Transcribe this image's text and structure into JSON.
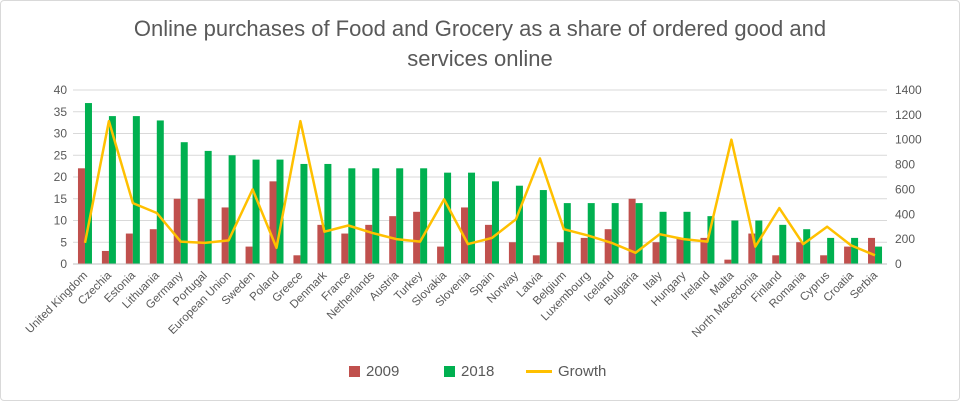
{
  "title_line1": "Online purchases of Food and Grocery as a share of ordered good and",
  "title_line2": "services online",
  "colors": {
    "s2009": "#c0504d",
    "s2018": "#00b050",
    "growth": "#ffc000",
    "grid": "#d9d9d9",
    "text": "#595959"
  },
  "chart_data": {
    "type": "bar",
    "categories": [
      "United Kingdom",
      "Czechia",
      "Estonia",
      "Lithuania",
      "Germany",
      "Portugal",
      "European Union",
      "Sweden",
      "Poland",
      "Greece",
      "Denmark",
      "France",
      "Netherlands",
      "Austria",
      "Turkey",
      "Slovakia",
      "Slovenia",
      "Spain",
      "Norway",
      "Latvia",
      "Belgium",
      "Luxembourg",
      "Iceland",
      "Bulgaria",
      "Italy",
      "Hungary",
      "Ireland",
      "Malta",
      "North Macedonia",
      "Finland",
      "Romania",
      "Cyprus",
      "Croatia",
      "Serbia"
    ],
    "series": [
      {
        "name": "2009",
        "type": "bar",
        "axis": "left",
        "values": [
          22,
          3,
          7,
          8,
          15,
          15,
          13,
          4,
          19,
          2,
          9,
          7,
          9,
          11,
          12,
          4,
          13,
          9,
          5,
          2,
          5,
          6,
          8,
          15,
          5,
          6,
          6,
          1,
          7,
          2,
          5,
          2,
          4,
          6
        ]
      },
      {
        "name": "2018",
        "type": "bar",
        "axis": "left",
        "values": [
          37,
          34,
          34,
          33,
          28,
          26,
          25,
          24,
          24,
          23,
          23,
          22,
          22,
          22,
          22,
          21,
          21,
          19,
          18,
          17,
          14,
          14,
          14,
          14,
          12,
          12,
          11,
          10,
          10,
          9,
          8,
          6,
          6,
          4
        ]
      },
      {
        "name": "Growth",
        "type": "line",
        "axis": "right",
        "values": [
          170,
          1150,
          490,
          410,
          180,
          170,
          190,
          600,
          130,
          1150,
          260,
          310,
          250,
          200,
          180,
          520,
          160,
          210,
          360,
          850,
          280,
          230,
          170,
          90,
          240,
          200,
          180,
          1000,
          140,
          450,
          160,
          300,
          150,
          70
        ]
      }
    ],
    "left_axis": {
      "min": 0,
      "max": 40,
      "ticks": [
        "0",
        "5",
        "10",
        "15",
        "20",
        "25",
        "30",
        "35",
        "40"
      ]
    },
    "right_axis": {
      "min": 0,
      "max": 1400,
      "ticks": [
        "0",
        "200",
        "400",
        "600",
        "800",
        "1000",
        "1200",
        "1400"
      ]
    },
    "grid": true,
    "legend": "bottom",
    "legend_labels": [
      "2009",
      "2018",
      "Growth"
    ]
  }
}
